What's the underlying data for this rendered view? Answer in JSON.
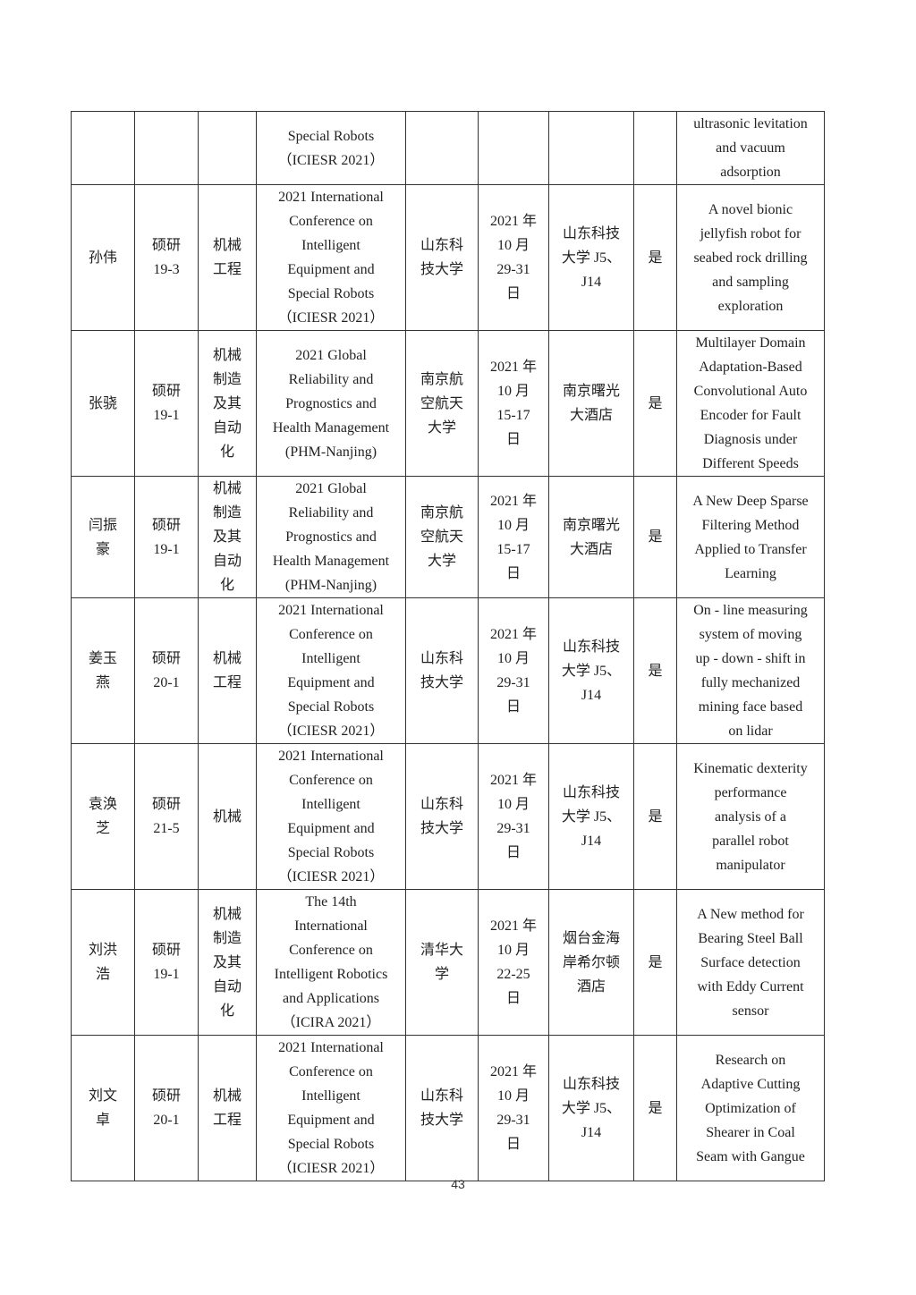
{
  "table": {
    "rows": [
      [
        "",
        "",
        "",
        "Special Robots\n（ICIESR 2021）",
        "",
        "",
        "",
        "",
        "ultrasonic levitation\nand vacuum\nadsorption"
      ],
      [
        "孙伟",
        "硕研\n19-3",
        "机械\n工程",
        "2021 International\nConference on\nIntelligent\nEquipment and\nSpecial Robots\n（ICIESR 2021）",
        "山东科\n技大学",
        "2021 年\n10 月\n29-31\n日",
        "山东科技\n大学 J5、\nJ14",
        "是",
        "A novel bionic\njellyfish robot for\nseabed rock drilling\nand sampling\nexploration"
      ],
      [
        "张骁",
        "硕研\n19-1",
        "机械\n制造\n及其\n自动\n化",
        "2021 Global\nReliability and\nPrognostics and\nHealth Management\n(PHM-Nanjing)",
        "南京航\n空航天\n大学",
        "2021 年\n10 月\n15-17\n日",
        "南京曙光\n大酒店",
        "是",
        "Multilayer Domain\nAdaptation-Based\nConvolutional Auto\nEncoder for Fault\nDiagnosis under\nDifferent Speeds"
      ],
      [
        "闫振\n豪",
        "硕研\n19-1",
        "机械\n制造\n及其\n自动\n化",
        "2021 Global\nReliability and\nPrognostics and\nHealth Management\n(PHM-Nanjing)",
        "南京航\n空航天\n大学",
        "2021 年\n10 月\n15-17\n日",
        "南京曙光\n大酒店",
        "是",
        "A New Deep Sparse\nFiltering Method\nApplied to Transfer\nLearning"
      ],
      [
        "姜玉\n燕",
        "硕研\n20-1",
        "机械\n工程",
        "2021 International\nConference on\nIntelligent\nEquipment and\nSpecial Robots\n（ICIESR 2021）",
        "山东科\n技大学",
        "2021 年\n10 月\n29-31\n日",
        "山东科技\n大学 J5、\nJ14",
        "是",
        "On - line measuring\nsystem of moving\nup - down - shift in\nfully mechanized\nmining face based\non lidar"
      ],
      [
        "袁涣\n芝",
        "硕研\n21-5",
        "机械",
        "2021 International\nConference on\nIntelligent\nEquipment and\nSpecial Robots\n（ICIESR 2021）",
        "山东科\n技大学",
        "2021 年\n10 月\n29-31\n日",
        "山东科技\n大学 J5、\nJ14",
        "是",
        "Kinematic dexterity\nperformance\nanalysis of a\nparallel robot\nmanipulator"
      ],
      [
        "刘洪\n浩",
        "硕研\n19-1",
        "机械\n制造\n及其\n自动\n化",
        "The 14th\nInternational\nConference on\nIntelligent Robotics\nand Applications\n（ICIRA 2021）",
        "清华大\n学",
        "2021 年\n10 月\n22-25\n日",
        "烟台金海\n岸希尔顿\n酒店",
        "是",
        "A New method for\nBearing Steel Ball\nSurface detection\nwith Eddy Current\nsensor"
      ],
      [
        "刘文\n卓",
        "硕研\n20-1",
        "机械\n工程",
        "2021 International\nConference on\nIntelligent\nEquipment and\nSpecial Robots\n（ICIESR 2021）",
        "山东科\n技大学",
        "2021 年\n10 月\n29-31\n日",
        "山东科技\n大学 J5、\nJ14",
        "是",
        "Research on\nAdaptive Cutting\nOptimization of\nShearer in Coal\nSeam with Gangue"
      ]
    ]
  },
  "page_number": "43"
}
